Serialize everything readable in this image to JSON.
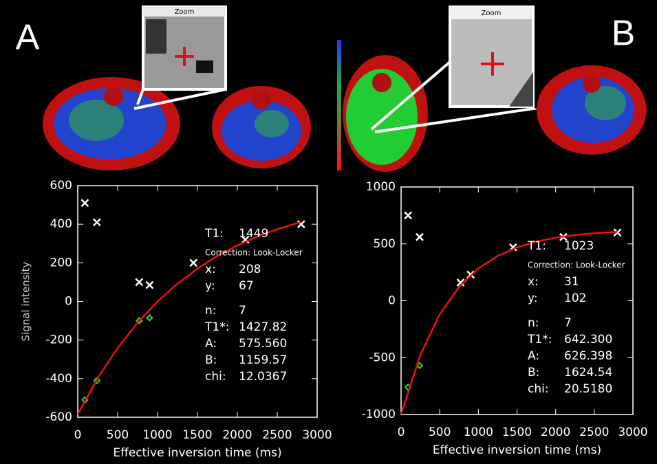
{
  "panels": [
    {
      "label": "A",
      "zoom_title": "Zoom"
    },
    {
      "label": "B",
      "zoom_title": "Zoom"
    }
  ],
  "chart_data": [
    {
      "type": "scatter",
      "xlabel": "Effective inversion time (ms)",
      "ylabel": "Signal intensity",
      "xlim": [
        0,
        3000
      ],
      "xticks": [
        0,
        500,
        1000,
        1500,
        2000,
        2500,
        3000
      ],
      "ylim": [
        -600,
        600
      ],
      "yticks": [
        -600,
        -400,
        -200,
        0,
        200,
        400,
        600
      ],
      "series": [
        {
          "color": "#ffffff",
          "marker": "x",
          "x": [
            90,
            240,
            770,
            900,
            1450,
            2100,
            2800
          ],
          "values": [
            510,
            410,
            100,
            85,
            200,
            320,
            400
          ]
        },
        {
          "color": "#22dd22",
          "marker": "diamond",
          "x": [
            90,
            240,
            770,
            900
          ],
          "values": [
            -510,
            -410,
            -100,
            -85
          ]
        },
        {
          "color": "#ee1111",
          "marker": "line",
          "x": [
            0,
            250,
            500,
            750,
            1000,
            1250,
            1500,
            1750,
            2000,
            2250,
            2500,
            2800
          ],
          "values": [
            -584,
            -398,
            -241,
            -110,
            0,
            92,
            170,
            235,
            290,
            336,
            374,
            412
          ]
        }
      ],
      "stats": [
        {
          "label": "T1:",
          "value": "1449"
        },
        {
          "label": "Correction: Look-Locker"
        },
        {
          "label": "x:",
          "value": "208"
        },
        {
          "label": "y:",
          "value": "67"
        },
        {
          "label": "n:",
          "value": "7"
        },
        {
          "label": "T1*:",
          "value": "1427.82"
        },
        {
          "label": "A:",
          "value": "575.560"
        },
        {
          "label": "B:",
          "value": "1159.57"
        },
        {
          "label": "chi:",
          "value": "12.0367"
        }
      ]
    },
    {
      "type": "scatter",
      "xlabel": "Effective inversion time (ms)",
      "xlim": [
        0,
        3000
      ],
      "xticks": [
        0,
        500,
        1000,
        1500,
        2000,
        2500,
        3000
      ],
      "ylim": [
        -1000,
        1000
      ],
      "yticks": [
        -1000,
        -500,
        0,
        500,
        1000
      ],
      "series": [
        {
          "color": "#ffffff",
          "marker": "x",
          "x": [
            90,
            240,
            770,
            900,
            1450,
            2100,
            2800
          ],
          "values": [
            750,
            560,
            160,
            230,
            470,
            560,
            600
          ]
        },
        {
          "color": "#22dd22",
          "marker": "diamond",
          "x": [
            90,
            240
          ],
          "values": [
            -760,
            -570
          ]
        },
        {
          "color": "#ee1111",
          "marker": "line",
          "x": [
            0,
            250,
            500,
            750,
            1000,
            1250,
            1500,
            1750,
            2000,
            2250,
            2500,
            2800
          ],
          "values": [
            -998,
            -474,
            -119,
            121,
            284,
            394,
            469,
            520,
            554,
            578,
            593,
            606
          ]
        }
      ],
      "stats": [
        {
          "label": "T1:",
          "value": "1023"
        },
        {
          "label": "Correction: Look-Locker"
        },
        {
          "label": "x:",
          "value": "31"
        },
        {
          "label": "y:",
          "value": "102"
        },
        {
          "label": "n:",
          "value": "7"
        },
        {
          "label": "T1*:",
          "value": "642.300"
        },
        {
          "label": "A:",
          "value": "626.398"
        },
        {
          "label": "B:",
          "value": "1624.54"
        },
        {
          "label": "chi:",
          "value": "20.5180"
        }
      ]
    }
  ]
}
